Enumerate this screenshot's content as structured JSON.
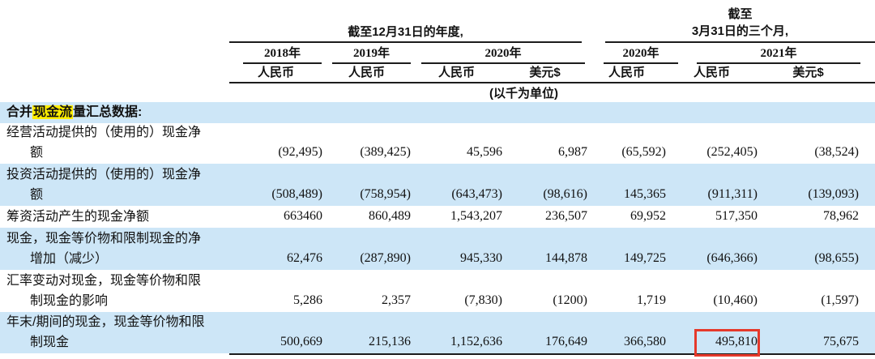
{
  "header": {
    "group1_title": "截至12月31日的年度,",
    "group2_line1": "截至",
    "group2_line2": "3月31日的三个月,",
    "years": [
      "2018年",
      "2019年",
      "2020年",
      "2020年",
      "2021年"
    ],
    "currencies": [
      "人民币",
      "人民币",
      "人民币",
      "美元$",
      "人民币",
      "人民币",
      "美元$"
    ],
    "unit_note": "(以千为单位)"
  },
  "section": {
    "pre": "合并",
    "highlight": "现金流",
    "post": "量汇总数据:"
  },
  "rows": [
    {
      "label_line1": "经营活动提供的（使用的）现金净",
      "label_line2": "额",
      "values": [
        "(92,495)",
        "(389,425)",
        "45,596",
        "6,987",
        "(65,592)",
        "(252,405)",
        "(38,524)"
      ],
      "shade": false
    },
    {
      "label_line1": "投资活动提供的（使用的）现金净",
      "label_line2": "额",
      "values": [
        "(508,489)",
        "(758,954)",
        "(643,473)",
        "(98,616)",
        "145,365",
        "(911,311)",
        "(139,093)"
      ],
      "shade": true
    },
    {
      "label_line1": "筹资活动产生的现金净额",
      "label_line2": "",
      "values": [
        "663460",
        "860,489",
        "1,543,207",
        "236,507",
        "69,952",
        "517,350",
        "78,962"
      ],
      "shade": false
    },
    {
      "label_line1": "现金，现金等价物和限制现金的净",
      "label_line2": "增加（减少）",
      "values": [
        "62,476",
        "(287,890)",
        "945,330",
        "144,878",
        "149,725",
        "(646,366)",
        "(98,655)"
      ],
      "shade": true
    },
    {
      "label_line1": "汇率变动对现金，现金等价物和限",
      "label_line2": "制现金的影响",
      "values": [
        "5,286",
        "2,357",
        "(7,830)",
        "(1200)",
        "1,719",
        "(10,460)",
        "(1,597)"
      ],
      "shade": false
    },
    {
      "label_line1": "年末/期间的现金，现金等价物和限",
      "label_line2": "制现金",
      "values": [
        "500,669",
        "215,136",
        "1,152,636",
        "176,649",
        "366,580",
        "495,810",
        "75,675"
      ],
      "shade": true
    }
  ],
  "annotation": {
    "highlighted_value": "495,810"
  },
  "colors": {
    "stripe_blue": "#cde6f7",
    "highlight_yellow": "#ffee00",
    "red_box": "#e5392b"
  }
}
